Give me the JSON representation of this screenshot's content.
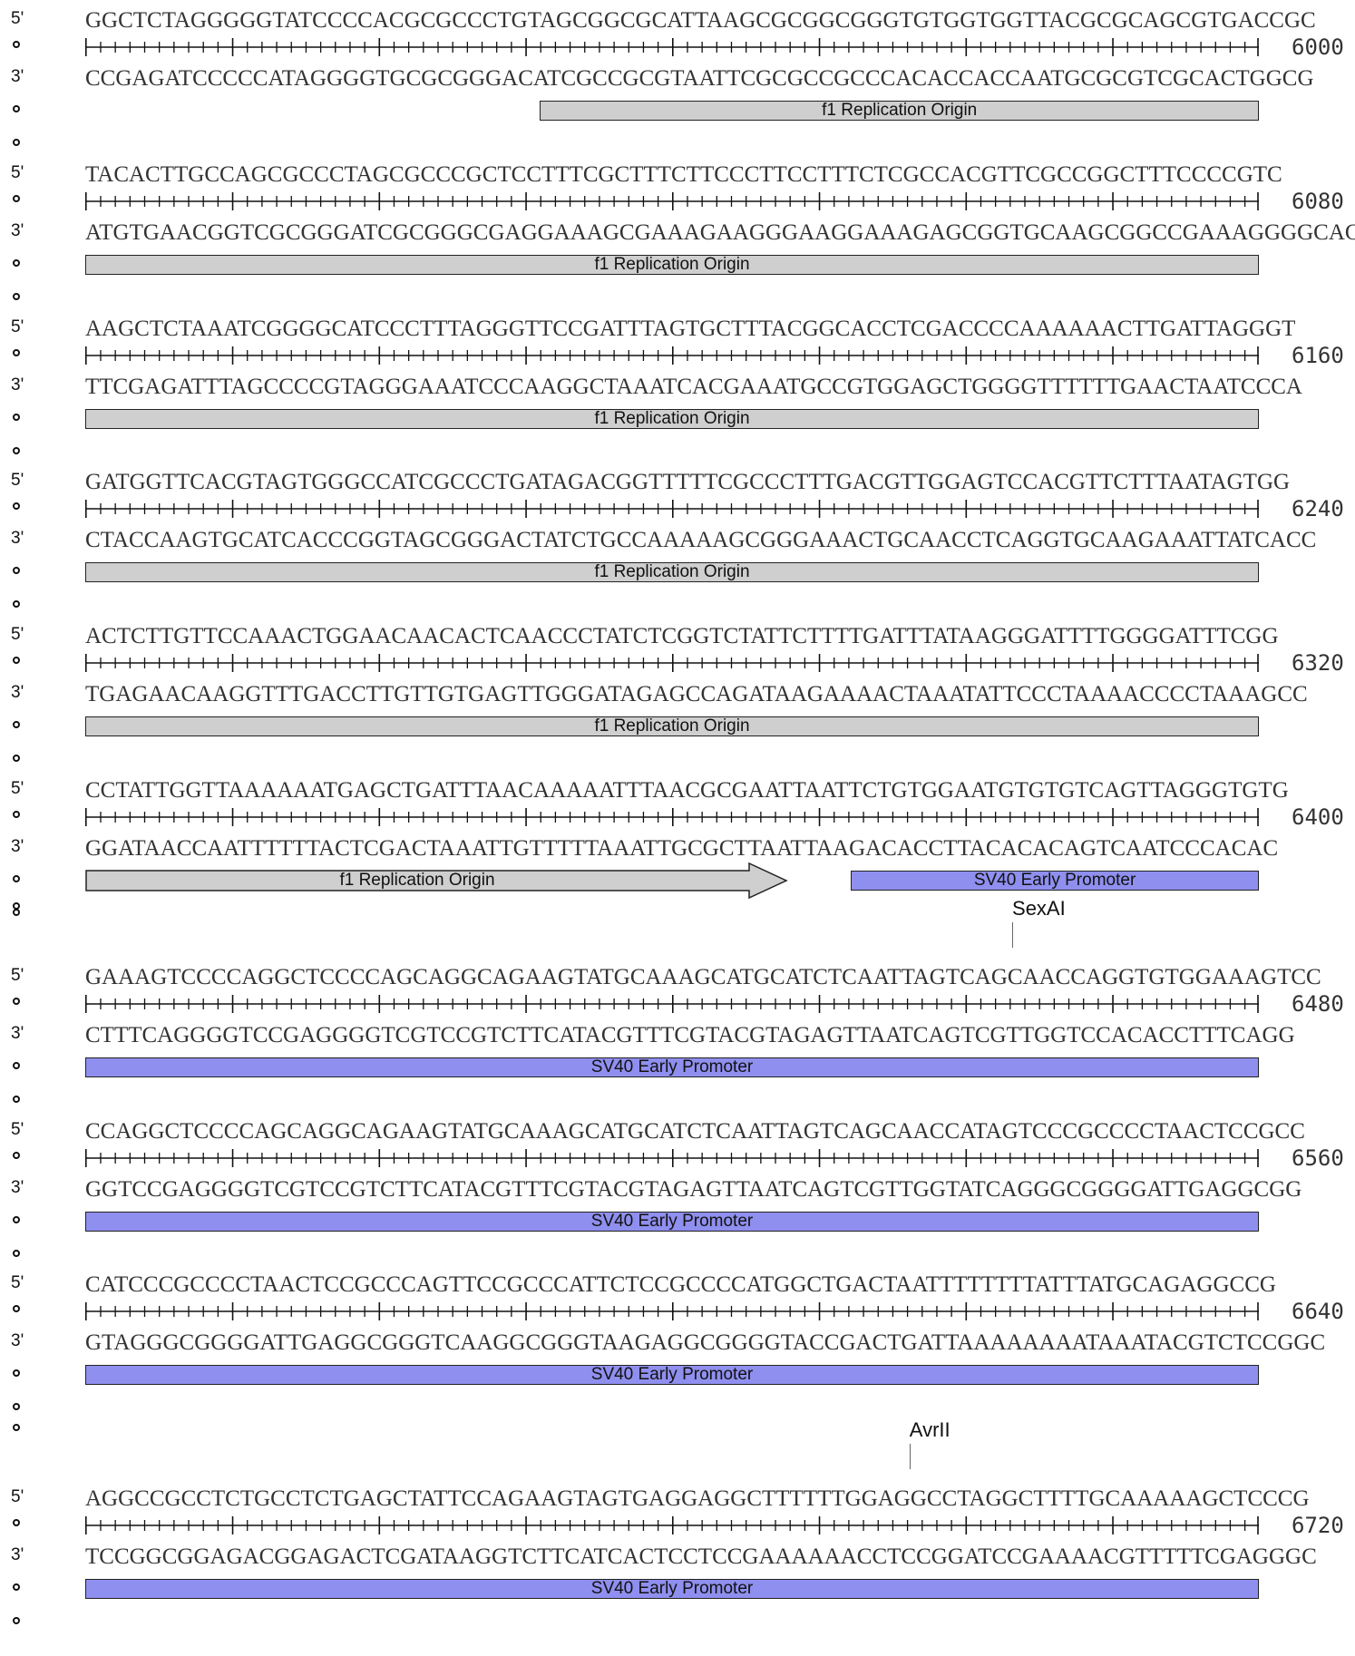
{
  "colors": {
    "grey_feature": "#cfcfcf",
    "blue_feature": "#8f8fef"
  },
  "labels": {
    "top": "5'",
    "bottom": "3'"
  },
  "features": {
    "f1": "f1 Replication Origin",
    "sv40": "SV40 Early Promoter"
  },
  "rows": [
    {
      "top": "GGCTCTAGGGGGTATCCCCACGCGCCCTGTAGCGGCGCATTAAGCGCGGCGGGTGTGGTGGTTACGCGCAGCGTGACCGC",
      "bottom": "CCGAGATCCCCCATAGGGGTGCGCGGGACATCGCCGCGTAATTCGCGCCGCCCACACCACCAATGCGCGTCGCACTGGCG",
      "pos": "6000",
      "feature": "f1",
      "feature_start_base": 31
    },
    {
      "top": "TACACTTGCCAGCGCCCTAGCGCCCGCTCCTTTCGCTTTCTTCCCTTCCTTTCTCGCCACGTTCGCCGGCTTTCCCCGTC",
      "bottom": "ATGTGAACGGTCGCGGGATCGCGGGCGAGGAAAGCGAAAGAAGGGAAGGAAAGAGCGGTGCAAGCGGCCGAAAGGGGCAG",
      "pos": "6080",
      "feature": "f1"
    },
    {
      "top": "AAGCTCTAAATCGGGGCATCCCTTTAGGGTTCCGATTTAGTGCTTTACGGCACCTCGACCCCAAAAAACTTGATTAGGGT",
      "bottom": "TTCGAGATTTAGCCCCGTAGGGAAATCCCAAGGCTAAATCACGAAATGCCGTGGAGCTGGGGTTTTTTGAACTAATCCCA",
      "pos": "6160",
      "feature": "f1"
    },
    {
      "top": "GATGGTTCACGTAGTGGGCCATCGCCCTGATAGACGGTTTTTCGCCCTTTGACGTTGGAGTCCACGTTCTTTAATAGTGG",
      "bottom": "CTACCAAGTGCATCACCCGGTAGCGGGACTATCTGCCAAAAAGCGGGAAACTGCAACCTCAGGTGCAAGAAATTATCACC",
      "pos": "6240",
      "feature": "f1"
    },
    {
      "top": "ACTCTTGTTCCAAACTGGAACAACACTCAACCCTATCTCGGTCTATTCTTTTGATTTATAAGGGATTTTGGGGATTTCGG",
      "bottom": "TGAGAACAAGGTTTGACCTTGTTGTGAGTTGGGATAGAGCCAGATAAGAAAACTAAATATTCCCTAAAACCCCTAAAGCC",
      "pos": "6320",
      "feature": "f1"
    },
    {
      "top": "CCTATTGGTTAAAAAATGAGCTGATTTAACAAAAATTTAACGCGAATTAATTCTGTGGAATGTGTGTCAGTTAGGGTGTG",
      "bottom": "GGATAACCAATTTTTTACTCGACTAAATTGTTTTTAAATTGCGCTTAATTAAGACACCTTACACACAGTCAATCCCACAC",
      "pos": "6400",
      "feature": "mixed"
    },
    {
      "top": "GAAAGTCCCCAGGCTCCCCAGCAGGCAGAAGTATGCAAAGCATGCATCTCAATTAGTCAGCAACCAGGTGTGGAAAGTCC",
      "bottom": "CTTTCAGGGGTCCGAGGGGTCGTCCGTCTTCATACGTTTCGTACGTAGAGTTAATCAGTCGTTGGTCCACACCTTTCAGG",
      "pos": "6480",
      "feature": "sv40",
      "enzyme": "SexAI",
      "enzyme_base": 63
    },
    {
      "top": "CCAGGCTCCCCAGCAGGCAGAAGTATGCAAAGCATGCATCTCAATTAGTCAGCAACCATAGTCCCGCCCCTAACTCCGCC",
      "bottom": "GGTCCGAGGGGTCGTCCGTCTTCATACGTTTCGTACGTAGAGTTAATCAGTCGTTGGTATCAGGGCGGGGATTGAGGCGG",
      "pos": "6560",
      "feature": "sv40"
    },
    {
      "top": "CATCCCGCCCCTAACTCCGCCCAGTTCCGCCCATTCTCCGCCCCATGGCTGACTAATTTTTTTTATTTATGCAGAGGCCG",
      "bottom": "GTAGGGCGGGGATTGAGGCGGGTCAAGGCGGGTAAGAGGCGGGGTACCGACTGATTAAAAAAAATAAATACGTCTCCGGC",
      "pos": "6640",
      "feature": "sv40"
    },
    {
      "top": "AGGCCGCCTCTGCCTCTGAGCTATTCCAGAAGTAGTGAGGAGGCTTTTTTGGAGGCCTAGGCTTTTGCAAAAAGCTCCCG",
      "bottom": "TCCGGCGGAGACGGAGACTCGATAAGGTCTTCATCACTCCTCCGAAAAAACCTCCGGATCCGAAAACGTTTTTCGAGGGC",
      "pos": "6720",
      "feature": "sv40",
      "enzyme": "AvrII",
      "enzyme_base": 56
    }
  ]
}
